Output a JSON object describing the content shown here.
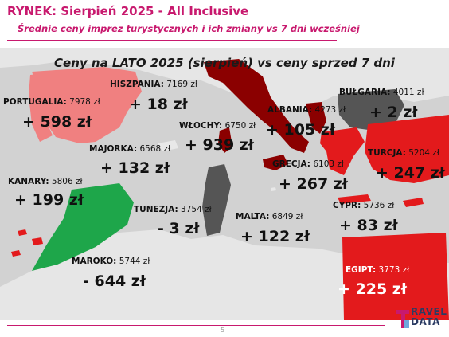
{
  "header": {
    "title": "RYNEK: Sierpień 2025 - All Inclusive",
    "subtitle": "Średnie ceny imprez turystycznych i ich zmiany vs 7 dni wcześniej"
  },
  "map": {
    "caption": "Ceny na LATO 2025 (sierpień) vs ceny sprzed 7 dni"
  },
  "destinations": [
    {
      "id": "portugalia",
      "name": "PORTUGALIA:",
      "price": "7978 zł",
      "change": "+ 598 zł",
      "color": "#f08080"
    },
    {
      "id": "hiszpania",
      "name": "HISZPANIA:",
      "price": "7169 zł",
      "change": "+ 18 zł",
      "color": "#f08080"
    },
    {
      "id": "majorka",
      "name": "MAJORKA:",
      "price": "6568 zł",
      "change": "+ 132 zł",
      "color": "#e8e8e8"
    },
    {
      "id": "kanary",
      "name": "KANARY:",
      "price": "5806 zł",
      "change": "+ 199 zł",
      "color": "#e31a1c"
    },
    {
      "id": "wlochy",
      "name": "WŁOCHY:",
      "price": "6750 zł",
      "change": "+ 939 zł",
      "color": "#8b0000"
    },
    {
      "id": "albania",
      "name": "ALBANIA:",
      "price": "4273 zł",
      "change": "+ 105 zł",
      "color": "#8b0000"
    },
    {
      "id": "bulgaria",
      "name": "BUŁGARIA:",
      "price": "4011 zł",
      "change": "+ 2 zł",
      "color": "#555555"
    },
    {
      "id": "turcja",
      "name": "TURCJA:",
      "price": "5204 zł",
      "change": "+ 247 zł",
      "color": "#e31a1c"
    },
    {
      "id": "grecja",
      "name": "GRECJA:",
      "price": "6103 zł",
      "change": "+ 267 zł",
      "color": "#e31a1c"
    },
    {
      "id": "tunezja",
      "name": "TUNEZJA:",
      "price": "3754 zł",
      "change": "- 3 zł",
      "color": "#555555"
    },
    {
      "id": "malta",
      "name": "MALTA:",
      "price": "6849 zł",
      "change": "+ 122 zł",
      "color": "#e8e8e8"
    },
    {
      "id": "cypr",
      "name": "CYPR:",
      "price": "5736 zł",
      "change": "+ 83 zł",
      "color": "#e31a1c"
    },
    {
      "id": "maroko",
      "name": "MAROKO:",
      "price": "5744 zł",
      "change": "- 644 zł",
      "color": "#1ea64a"
    },
    {
      "id": "egipt",
      "name": "EGIPT:",
      "price": "3773 zł",
      "change": "+ 225 zł",
      "color": "#e31a1c"
    }
  ],
  "footer": {
    "page_number": "5",
    "logo_top": "RAVEL",
    "logo_bottom": "DATA"
  }
}
